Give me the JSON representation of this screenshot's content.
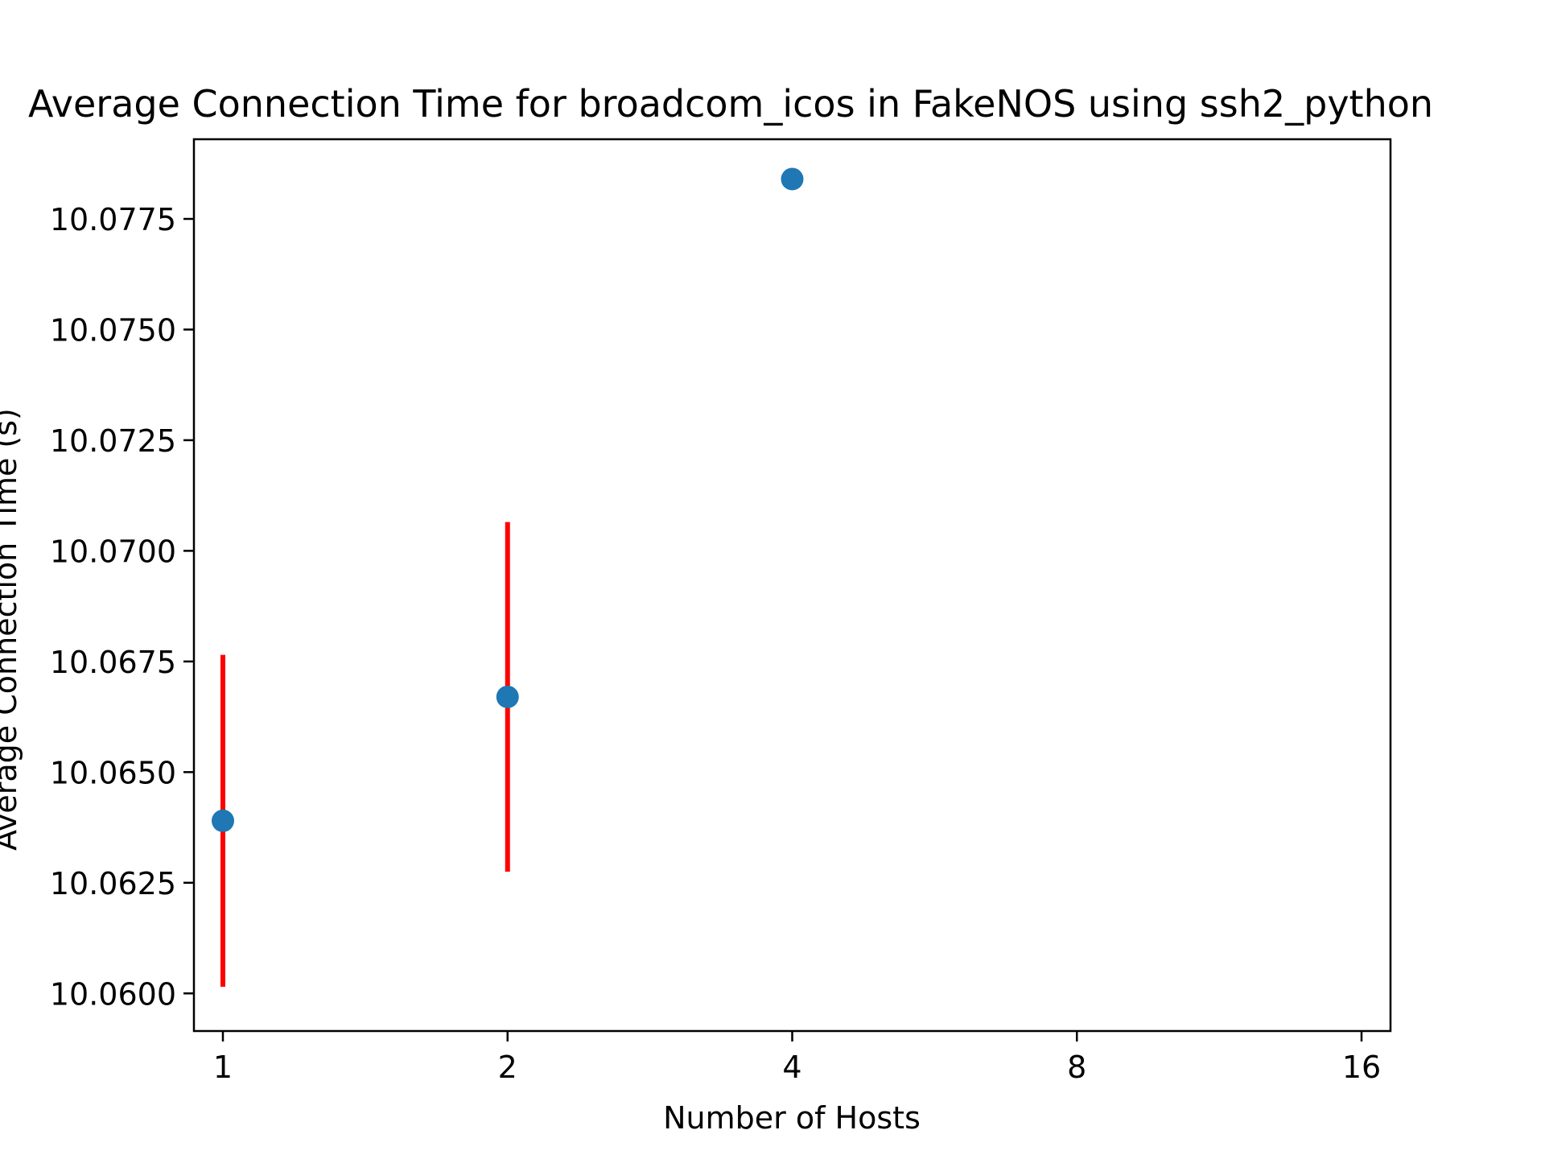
{
  "chart_data": {
    "type": "scatter",
    "title": "Average Connection Time for broadcom_icos in FakeNOS using ssh2_python",
    "xlabel": "Number of Hosts",
    "ylabel": "Average Connection Time (s)",
    "x_scale": "log2",
    "x_ticks": [
      1,
      2,
      4,
      8,
      16
    ],
    "x_tick_labels": [
      "1",
      "2",
      "4",
      "8",
      "16"
    ],
    "xlim": [
      1,
      16
    ],
    "y_ticks": [
      10.06,
      10.0625,
      10.065,
      10.0675,
      10.07,
      10.0725,
      10.075,
      10.0775
    ],
    "y_tick_labels": [
      "10.0600",
      "10.0625",
      "10.0650",
      "10.0675",
      "10.0700",
      "10.0725",
      "10.0750",
      "10.0775"
    ],
    "ylim": [
      10.05915,
      10.0793
    ],
    "grid": false,
    "series": [
      {
        "x": [
          1,
          2,
          4
        ],
        "y": [
          10.0639,
          10.0667,
          10.0784
        ],
        "error": [
          [
            0.00375,
            0.00375
          ],
          [
            0.00395,
            0.00395
          ],
          [
            0,
            0
          ]
        ],
        "marker_color": "#1f77b4",
        "error_color": "#ff0000"
      }
    ]
  }
}
